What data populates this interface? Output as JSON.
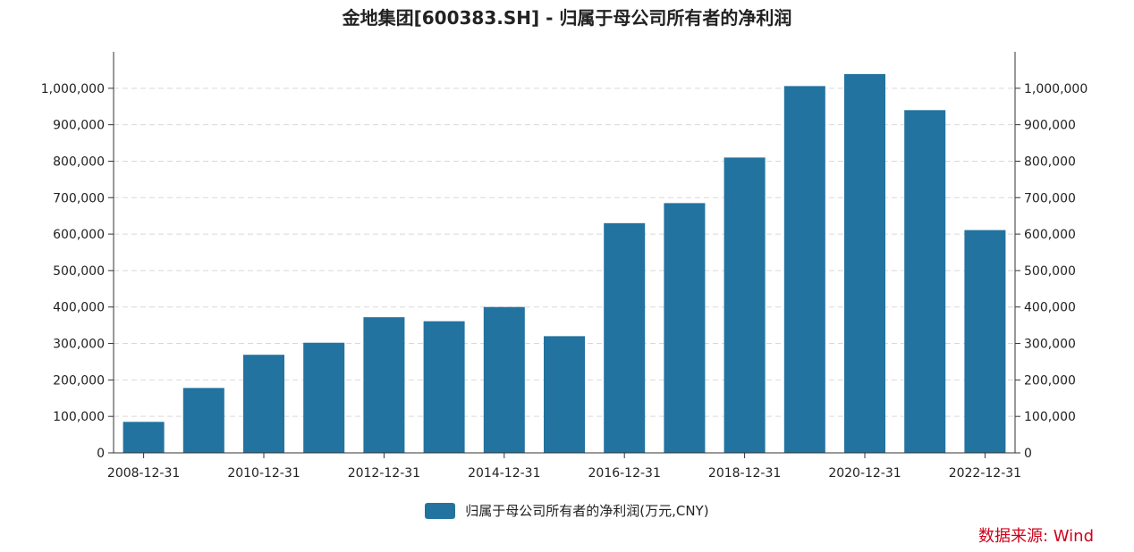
{
  "chart_data": {
    "type": "bar",
    "title": "金地集团[600383.SH] - 归属于母公司所有者的净利润",
    "categories": [
      "2008-12-31",
      "2009-12-31",
      "2010-12-31",
      "2011-12-31",
      "2012-12-31",
      "2013-12-31",
      "2014-12-31",
      "2015-12-31",
      "2016-12-31",
      "2017-12-31",
      "2018-12-31",
      "2019-12-31",
      "2020-12-31",
      "2021-12-31",
      "2022-12-31"
    ],
    "x_tick_labels": [
      "2008-12-31",
      "2010-12-31",
      "2012-12-31",
      "2014-12-31",
      "2016-12-31",
      "2018-12-31",
      "2020-12-31",
      "2022-12-31"
    ],
    "series": [
      {
        "name": "归属于母公司所有者的净利润(万元,CNY)",
        "values": [
          85000,
          178000,
          269000,
          302000,
          372000,
          361000,
          400000,
          320000,
          630000,
          685000,
          810000,
          1006000,
          1039000,
          940000,
          611000
        ]
      }
    ],
    "ylim": [
      0,
      1100000
    ],
    "y_ticks": [
      0,
      100000,
      200000,
      300000,
      400000,
      500000,
      600000,
      700000,
      800000,
      900000,
      1000000
    ],
    "y_tick_labels": [
      "0",
      "100,000",
      "200,000",
      "300,000",
      "400,000",
      "500,000",
      "600,000",
      "700,000",
      "800,000",
      "900,000",
      "1,000,000"
    ],
    "right_axis": true,
    "grid": true,
    "legend_position": "bottom",
    "bar_color": "#22739f"
  },
  "legend": {
    "label": "归属于母公司所有者的净利润(万元,CNY)"
  },
  "source": "数据来源: Wind"
}
